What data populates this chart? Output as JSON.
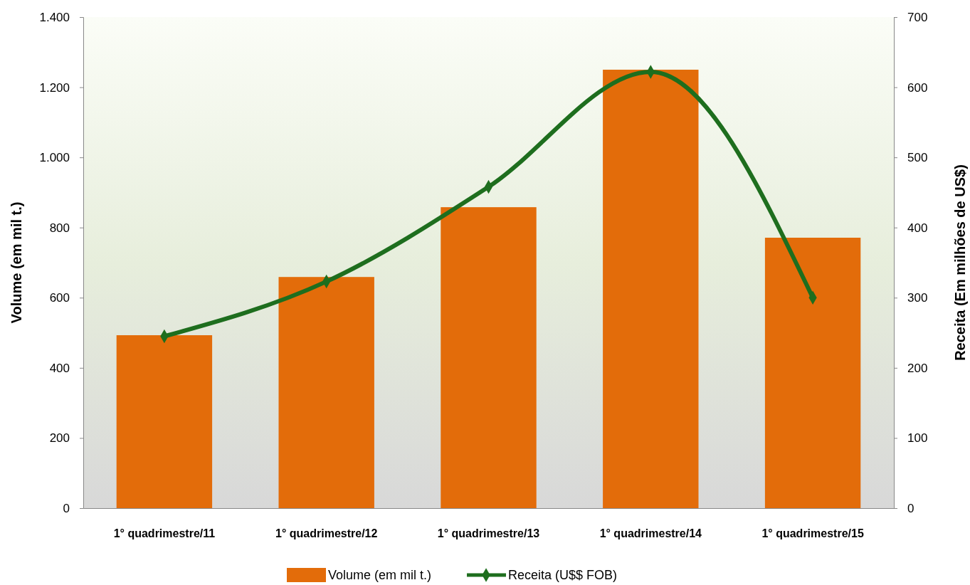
{
  "chart_data": {
    "type": "bar",
    "ylabel": "Volume (em mil t.)",
    "y2label": "Receita (Em milhões de US$)",
    "categories": [
      "1° quadrimestre/11",
      "1° quadrimestre/12",
      "1° quadrimestre/13",
      "1° quadrimestre/14",
      "1° quadrimestre/15"
    ],
    "series": [
      {
        "name": "Volume (em mil t.)",
        "color": "#e36c0a",
        "values": [
          493,
          659,
          858,
          1250,
          771
        ]
      },
      {
        "name": "Receita (U$$ FOB)",
        "type": "line",
        "axis": "y2",
        "color": "#1e6e1e",
        "marker": "diamond",
        "values": [
          245,
          323,
          458,
          622,
          300
        ]
      }
    ],
    "ylim": [
      0,
      1400
    ],
    "yticks": [
      0,
      200,
      400,
      600,
      800,
      {
        "value": 1000,
        "label": "1.000"
      },
      {
        "value": 1200,
        "label": "1.200"
      },
      {
        "value": 1400,
        "label": "1.400"
      }
    ],
    "y2lim": [
      0,
      700
    ],
    "y2ticks": [
      0,
      100,
      200,
      300,
      400,
      500,
      600,
      700
    ],
    "legend": "bottom",
    "grid": false
  }
}
